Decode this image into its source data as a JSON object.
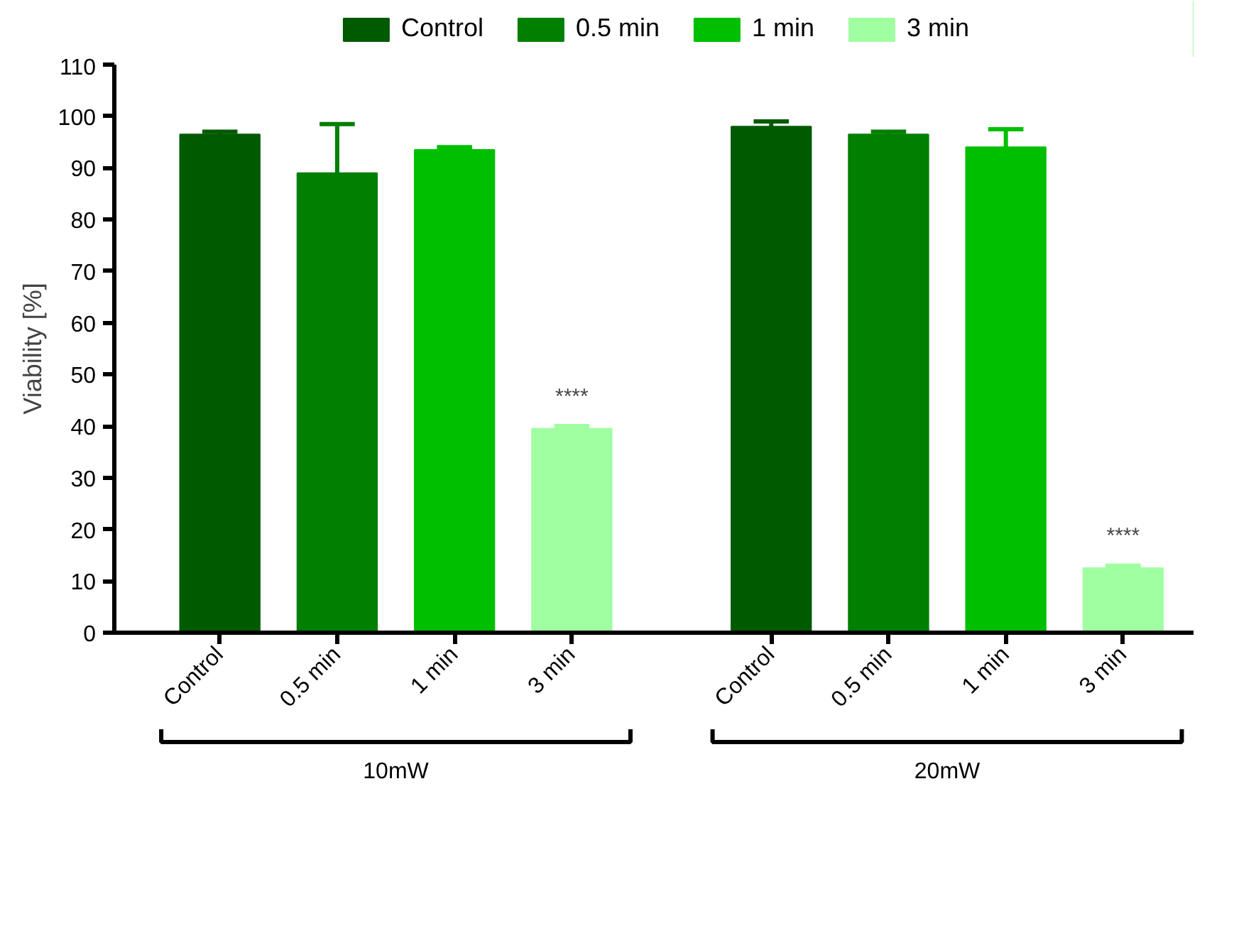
{
  "chart_data": {
    "type": "bar",
    "ylabel": "Viability [%]",
    "categories": [
      "10mW",
      "20mW"
    ],
    "series": [
      {
        "name": "Control",
        "color": "#005a00",
        "values": [
          96.5,
          98
        ],
        "errors": [
          [
            96.5,
            97
          ],
          [
            98,
            99
          ]
        ]
      },
      {
        "name": "0.5 min",
        "color": "#007f00",
        "values": [
          89,
          96.5
        ],
        "errors": [
          [
            89,
            98.5
          ],
          [
            96.5,
            97
          ]
        ]
      },
      {
        "name": "1 min",
        "color": "#00bf00",
        "values": [
          93.5,
          94
        ],
        "errors": [
          [
            93.5,
            94
          ],
          [
            94,
            97.5
          ]
        ]
      },
      {
        "name": "3 min",
        "color": "#a0ffa0",
        "values": [
          39.5,
          12.5
        ],
        "errors": [
          [
            39.5,
            40
          ],
          [
            12.5,
            13
          ]
        ]
      }
    ],
    "annotations": [
      "****",
      "****"
    ],
    "ylim": [
      0,
      110
    ],
    "yticks": [
      0,
      10,
      20,
      30,
      40,
      50,
      60,
      70,
      80,
      90,
      100,
      110
    ],
    "grid": false,
    "legend": "top"
  }
}
